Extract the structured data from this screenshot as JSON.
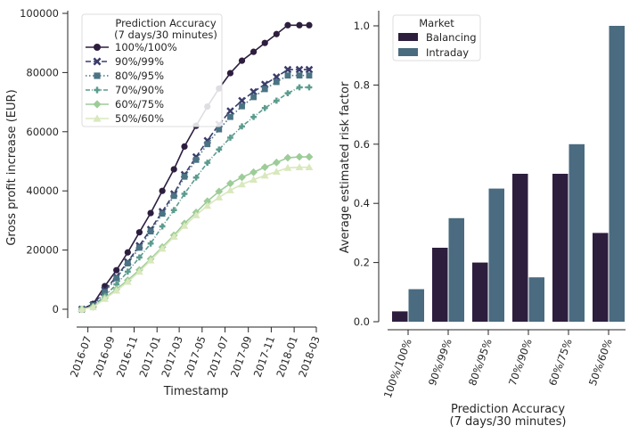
{
  "chart_data": [
    {
      "type": "line",
      "xlabel": "Timestamp",
      "ylabel": "Gross profit increase (EUR)",
      "ylim": [
        -5000,
        101000
      ],
      "y_ticks": [
        "0",
        "20000",
        "40000",
        "60000",
        "80000",
        "100000"
      ],
      "x_ticks": [
        "2016-07",
        "2016-09",
        "2016-11",
        "2017-01",
        "2017-03",
        "2017-05",
        "2017-07",
        "2017-09",
        "2017-11",
        "2018-01",
        "2018-03"
      ],
      "x": [
        "2016-06-15",
        "2016-07-15",
        "2016-08-15",
        "2016-09-15",
        "2016-10-15",
        "2016-11-15",
        "2016-12-15",
        "2017-01-15",
        "2017-02-15",
        "2017-03-15",
        "2017-04-15",
        "2017-05-15",
        "2017-06-15",
        "2017-07-15",
        "2017-08-15",
        "2017-09-15",
        "2017-10-15",
        "2017-11-15",
        "2017-12-15",
        "2018-01-15",
        "2018-02-10"
      ],
      "legend": {
        "title": "Prediction Accuracy\n(7 days/30 minutes)",
        "placement": "upper left"
      },
      "series": [
        {
          "name": "100%/100%",
          "color": "#2d1e3e",
          "marker": "circle",
          "dash": "",
          "values": [
            0,
            1800,
            7800,
            13200,
            19200,
            26000,
            32500,
            40000,
            47300,
            55000,
            62000,
            68500,
            74600,
            79800,
            84000,
            87000,
            90000,
            93000,
            96000,
            96000,
            96000
          ]
        },
        {
          "name": "90%/99%",
          "color": "#3a3d6b",
          "marker": "x",
          "dash": "6,3",
          "values": [
            0,
            1500,
            6500,
            11000,
            16000,
            21500,
            27000,
            33000,
            39000,
            45500,
            51500,
            57000,
            62500,
            67000,
            70500,
            73500,
            76000,
            78500,
            81000,
            81000,
            81000
          ]
        },
        {
          "name": "80%/95%",
          "color": "#4a7383",
          "marker": "square",
          "dash": "1.5,2.5",
          "values": [
            0,
            1300,
            5800,
            10500,
            15500,
            20800,
            26300,
            32300,
            38300,
            44800,
            50500,
            55800,
            60800,
            65000,
            68600,
            71700,
            74400,
            76800,
            79000,
            79000,
            79000
          ]
        },
        {
          "name": "70%/90%",
          "color": "#5c9c8e",
          "marker": "plus",
          "dash": "5,2,1,2",
          "values": [
            0,
            1000,
            4500,
            8400,
            12700,
            17500,
            22200,
            28000,
            33500,
            39000,
            44500,
            49500,
            54000,
            58000,
            61800,
            65000,
            68000,
            70500,
            73000,
            75000,
            75000
          ]
        },
        {
          "name": "60%/75%",
          "color": "#9dcc98",
          "marker": "diamond",
          "dash": "",
          "values": [
            0,
            800,
            3800,
            6800,
            9800,
            13300,
            17000,
            21000,
            25000,
            29000,
            32700,
            36500,
            39800,
            42500,
            44600,
            46300,
            48000,
            49600,
            51200,
            51500,
            51500
          ]
        },
        {
          "name": "50%/60%",
          "color": "#d9e8bd",
          "marker": "triangle",
          "dash": "",
          "values": [
            0,
            700,
            3500,
            6300,
            9300,
            12700,
            16500,
            20500,
            24500,
            28200,
            31800,
            35000,
            37800,
            40200,
            42200,
            43800,
            45200,
            46500,
            47800,
            48000,
            48000
          ]
        }
      ]
    },
    {
      "type": "bar",
      "xlabel": "Prediction Accuracy\n(7 days/30 minutes)",
      "ylabel": "Average estimated risk factor",
      "ylim": [
        -0.02,
        1.05
      ],
      "y_ticks": [
        "0.0",
        "0.2",
        "0.4",
        "0.6",
        "0.8",
        "1.0"
      ],
      "categories": [
        "100%/100%",
        "90%/99%",
        "80%/95%",
        "70%/90%",
        "60%/75%",
        "50%/60%"
      ],
      "legend": {
        "title": "Market",
        "placement": "upper left"
      },
      "series": [
        {
          "name": "Balancing",
          "color": "#2d1e3e",
          "values": [
            0.035,
            0.25,
            0.2,
            0.5,
            0.5,
            0.3
          ]
        },
        {
          "name": "Intraday",
          "color": "#4a6b80",
          "values": [
            0.11,
            0.35,
            0.45,
            0.15,
            0.6,
            1.0
          ]
        }
      ]
    }
  ]
}
